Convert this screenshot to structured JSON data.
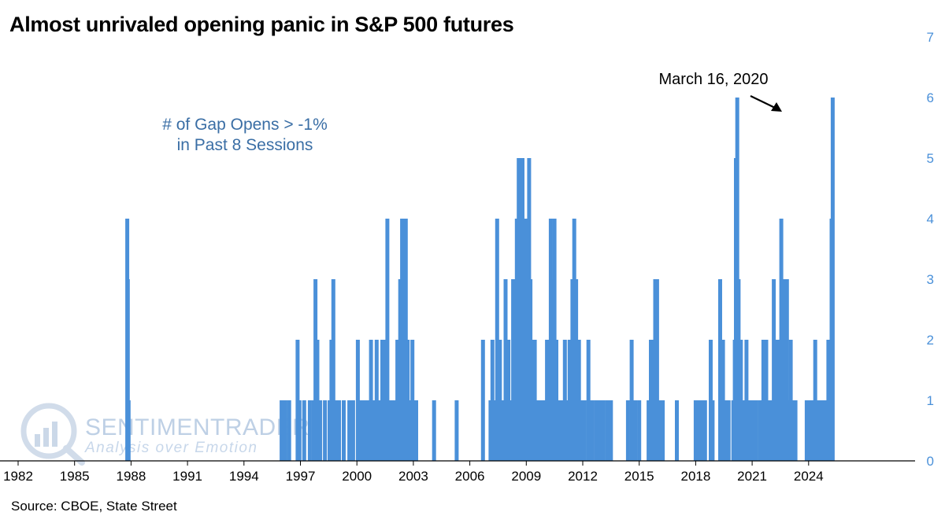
{
  "title": "Almost unrivaled opening panic in S&P 500 futures",
  "source": "Source: CBOE, State Street",
  "watermark": {
    "name": "SENTIMENTRADER",
    "tagline": "Analysis over Emotion"
  },
  "colors": {
    "bars": "#4a90d9",
    "right_axis_text": "#4a90d9",
    "series_label_text": "#3a6ea5",
    "watermark": "#b8cbe3"
  },
  "chart_data": {
    "type": "bar",
    "title": "Almost unrivaled opening panic in S&P 500 futures",
    "series_name": "# of Gap Opens > -1% in Past 8 Sessions",
    "series_label_lines": [
      "# of Gap Opens > -1%",
      "in Past 8 Sessions"
    ],
    "xlim": [
      1982,
      2025.7
    ],
    "x_ticks": [
      1982,
      1985,
      1988,
      1991,
      1994,
      1997,
      2000,
      2003,
      2006,
      2009,
      2012,
      2015,
      2018,
      2021,
      2024
    ],
    "ylim": [
      0,
      7
    ],
    "y_ticks": [
      0,
      1,
      2,
      3,
      4,
      5,
      6,
      7
    ],
    "y_axis_position": "right",
    "grid": false,
    "annotation": {
      "text": "March 16, 2020",
      "x": 2020.21,
      "y": 6
    },
    "data": [
      {
        "x": 1987.8,
        "y": 4
      },
      {
        "x": 1987.83,
        "y": 3
      },
      {
        "x": 1987.87,
        "y": 1
      },
      {
        "x": 1996.0,
        "y": 1
      },
      {
        "x": 1996.2,
        "y": 1
      },
      {
        "x": 1996.4,
        "y": 1
      },
      {
        "x": 1996.85,
        "y": 2
      },
      {
        "x": 1996.95,
        "y": 1
      },
      {
        "x": 1997.2,
        "y": 1
      },
      {
        "x": 1997.5,
        "y": 1
      },
      {
        "x": 1997.7,
        "y": 1
      },
      {
        "x": 1997.8,
        "y": 3
      },
      {
        "x": 1997.9,
        "y": 2
      },
      {
        "x": 1998.05,
        "y": 1
      },
      {
        "x": 1998.3,
        "y": 1
      },
      {
        "x": 1998.55,
        "y": 1
      },
      {
        "x": 1998.65,
        "y": 2
      },
      {
        "x": 1998.75,
        "y": 3
      },
      {
        "x": 1998.85,
        "y": 1
      },
      {
        "x": 1999.05,
        "y": 1
      },
      {
        "x": 1999.3,
        "y": 1
      },
      {
        "x": 1999.6,
        "y": 1
      },
      {
        "x": 1999.8,
        "y": 1
      },
      {
        "x": 2000.05,
        "y": 2
      },
      {
        "x": 2000.2,
        "y": 1
      },
      {
        "x": 2000.4,
        "y": 1
      },
      {
        "x": 2000.6,
        "y": 1
      },
      {
        "x": 2000.75,
        "y": 2
      },
      {
        "x": 2000.9,
        "y": 1
      },
      {
        "x": 2001.05,
        "y": 2
      },
      {
        "x": 2001.2,
        "y": 1
      },
      {
        "x": 2001.35,
        "y": 2
      },
      {
        "x": 2001.5,
        "y": 2
      },
      {
        "x": 2001.62,
        "y": 4
      },
      {
        "x": 2001.72,
        "y": 1
      },
      {
        "x": 2001.85,
        "y": 1
      },
      {
        "x": 2002.0,
        "y": 1
      },
      {
        "x": 2002.15,
        "y": 2
      },
      {
        "x": 2002.3,
        "y": 3
      },
      {
        "x": 2002.4,
        "y": 4
      },
      {
        "x": 2002.5,
        "y": 3
      },
      {
        "x": 2002.6,
        "y": 4
      },
      {
        "x": 2002.7,
        "y": 2
      },
      {
        "x": 2002.82,
        "y": 1
      },
      {
        "x": 2002.95,
        "y": 2
      },
      {
        "x": 2003.05,
        "y": 1
      },
      {
        "x": 2003.15,
        "y": 1
      },
      {
        "x": 2004.1,
        "y": 1
      },
      {
        "x": 2005.3,
        "y": 1
      },
      {
        "x": 2006.7,
        "y": 2
      },
      {
        "x": 2007.1,
        "y": 1
      },
      {
        "x": 2007.2,
        "y": 2
      },
      {
        "x": 2007.3,
        "y": 1
      },
      {
        "x": 2007.45,
        "y": 4
      },
      {
        "x": 2007.6,
        "y": 2
      },
      {
        "x": 2007.75,
        "y": 1
      },
      {
        "x": 2007.9,
        "y": 3
      },
      {
        "x": 2008.05,
        "y": 2
      },
      {
        "x": 2008.2,
        "y": 1
      },
      {
        "x": 2008.3,
        "y": 3
      },
      {
        "x": 2008.4,
        "y": 2
      },
      {
        "x": 2008.5,
        "y": 4
      },
      {
        "x": 2008.6,
        "y": 5
      },
      {
        "x": 2008.7,
        "y": 5
      },
      {
        "x": 2008.8,
        "y": 5
      },
      {
        "x": 2008.88,
        "y": 4
      },
      {
        "x": 2008.95,
        "y": 3
      },
      {
        "x": 2009.0,
        "y": 4
      },
      {
        "x": 2009.08,
        "y": 2
      },
      {
        "x": 2009.15,
        "y": 5
      },
      {
        "x": 2009.22,
        "y": 3
      },
      {
        "x": 2009.32,
        "y": 2
      },
      {
        "x": 2009.45,
        "y": 2
      },
      {
        "x": 2009.6,
        "y": 1
      },
      {
        "x": 2009.8,
        "y": 1
      },
      {
        "x": 2009.95,
        "y": 1
      },
      {
        "x": 2010.1,
        "y": 2
      },
      {
        "x": 2010.2,
        "y": 1
      },
      {
        "x": 2010.3,
        "y": 4
      },
      {
        "x": 2010.4,
        "y": 3
      },
      {
        "x": 2010.5,
        "y": 4
      },
      {
        "x": 2010.6,
        "y": 2
      },
      {
        "x": 2010.75,
        "y": 1
      },
      {
        "x": 2010.9,
        "y": 1
      },
      {
        "x": 2011.05,
        "y": 2
      },
      {
        "x": 2011.2,
        "y": 1
      },
      {
        "x": 2011.3,
        "y": 2
      },
      {
        "x": 2011.45,
        "y": 3
      },
      {
        "x": 2011.55,
        "y": 4
      },
      {
        "x": 2011.65,
        "y": 3
      },
      {
        "x": 2011.8,
        "y": 2
      },
      {
        "x": 2011.95,
        "y": 1
      },
      {
        "x": 2012.1,
        "y": 1
      },
      {
        "x": 2012.3,
        "y": 2
      },
      {
        "x": 2012.5,
        "y": 1
      },
      {
        "x": 2012.7,
        "y": 1
      },
      {
        "x": 2012.9,
        "y": 1
      },
      {
        "x": 2013.1,
        "y": 1
      },
      {
        "x": 2013.3,
        "y": 1
      },
      {
        "x": 2013.5,
        "y": 1
      },
      {
        "x": 2014.4,
        "y": 1
      },
      {
        "x": 2014.6,
        "y": 2
      },
      {
        "x": 2014.8,
        "y": 1
      },
      {
        "x": 2015.0,
        "y": 1
      },
      {
        "x": 2015.5,
        "y": 1
      },
      {
        "x": 2015.62,
        "y": 2
      },
      {
        "x": 2015.72,
        "y": 2
      },
      {
        "x": 2015.85,
        "y": 3
      },
      {
        "x": 2015.95,
        "y": 3
      },
      {
        "x": 2016.1,
        "y": 1
      },
      {
        "x": 2016.25,
        "y": 1
      },
      {
        "x": 2017.0,
        "y": 1
      },
      {
        "x": 2018.0,
        "y": 1
      },
      {
        "x": 2018.15,
        "y": 1
      },
      {
        "x": 2018.3,
        "y": 1
      },
      {
        "x": 2018.5,
        "y": 1
      },
      {
        "x": 2018.8,
        "y": 2
      },
      {
        "x": 2018.9,
        "y": 1
      },
      {
        "x": 2019.3,
        "y": 3
      },
      {
        "x": 2019.45,
        "y": 2
      },
      {
        "x": 2019.6,
        "y": 1
      },
      {
        "x": 2019.75,
        "y": 1
      },
      {
        "x": 2020.0,
        "y": 1
      },
      {
        "x": 2020.08,
        "y": 2
      },
      {
        "x": 2020.14,
        "y": 5
      },
      {
        "x": 2020.21,
        "y": 6
      },
      {
        "x": 2020.28,
        "y": 3
      },
      {
        "x": 2020.4,
        "y": 2
      },
      {
        "x": 2020.55,
        "y": 1
      },
      {
        "x": 2020.7,
        "y": 2
      },
      {
        "x": 2020.85,
        "y": 1
      },
      {
        "x": 2021.0,
        "y": 1
      },
      {
        "x": 2021.2,
        "y": 1
      },
      {
        "x": 2021.4,
        "y": 1
      },
      {
        "x": 2021.6,
        "y": 2
      },
      {
        "x": 2021.75,
        "y": 2
      },
      {
        "x": 2021.9,
        "y": 1
      },
      {
        "x": 2022.05,
        "y": 1
      },
      {
        "x": 2022.15,
        "y": 3
      },
      {
        "x": 2022.25,
        "y": 2
      },
      {
        "x": 2022.35,
        "y": 1
      },
      {
        "x": 2022.45,
        "y": 2
      },
      {
        "x": 2022.55,
        "y": 4
      },
      {
        "x": 2022.65,
        "y": 3
      },
      {
        "x": 2022.75,
        "y": 2
      },
      {
        "x": 2022.85,
        "y": 3
      },
      {
        "x": 2022.95,
        "y": 1
      },
      {
        "x": 2023.05,
        "y": 2
      },
      {
        "x": 2023.2,
        "y": 1
      },
      {
        "x": 2023.3,
        "y": 1
      },
      {
        "x": 2023.9,
        "y": 1
      },
      {
        "x": 2024.05,
        "y": 1
      },
      {
        "x": 2024.2,
        "y": 1
      },
      {
        "x": 2024.35,
        "y": 2
      },
      {
        "x": 2024.45,
        "y": 1
      },
      {
        "x": 2024.6,
        "y": 1
      },
      {
        "x": 2024.75,
        "y": 1
      },
      {
        "x": 2024.85,
        "y": 1
      },
      {
        "x": 2025.05,
        "y": 2
      },
      {
        "x": 2025.15,
        "y": 1
      },
      {
        "x": 2025.22,
        "y": 4
      },
      {
        "x": 2025.28,
        "y": 6
      }
    ]
  }
}
